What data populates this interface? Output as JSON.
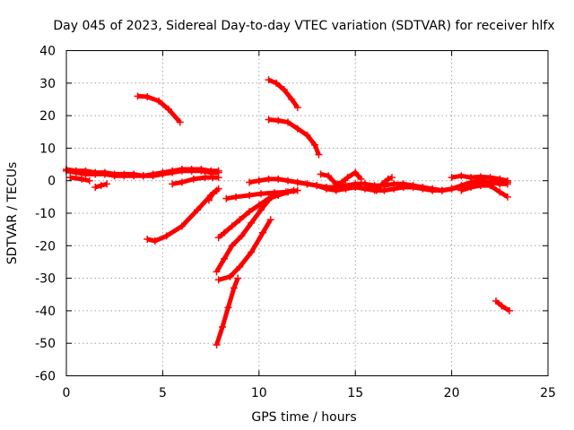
{
  "chart_data": {
    "type": "scatter",
    "title": "Day 045 of 2023, Sidereal Day-to-day VTEC variation (SDTVAR) for receiver hlfx",
    "xlabel": "GPS time / hours",
    "ylabel": "SDTVAR / TECUs",
    "xlim": [
      0,
      25
    ],
    "ylim": [
      -60,
      40
    ],
    "xticks": [
      "0",
      "5",
      "10",
      "15",
      "20",
      "25"
    ],
    "yticks": [
      "-60",
      "-50",
      "-40",
      "-30",
      "-20",
      "-10",
      "0",
      "10",
      "20",
      "30",
      "40"
    ],
    "grid": true,
    "marker": "+",
    "color": "#ff0000",
    "series": [
      {
        "x": [
          0,
          0.5,
          1,
          1.5,
          2,
          2.5,
          3,
          3.5,
          4,
          4.5,
          5,
          5.5,
          6,
          6.5,
          7,
          7.5,
          7.9
        ],
        "y": [
          3,
          2.5,
          2,
          2,
          2,
          1.5,
          1.5,
          1.5,
          1.5,
          1.5,
          2,
          2.5,
          3,
          3,
          3,
          2.5,
          2.5
        ]
      },
      {
        "x": [
          0,
          0.5,
          1,
          1.5,
          2,
          2.5,
          3,
          3.5,
          4,
          4.5,
          5,
          5.5,
          6,
          6.5,
          7,
          7.5,
          7.9
        ],
        "y": [
          3.5,
          3,
          3,
          2.5,
          2.5,
          2,
          2,
          2,
          1.5,
          2,
          2.5,
          3,
          3.5,
          3.5,
          3.5,
          3,
          3
        ]
      },
      {
        "x": [
          0.2,
          0.8,
          1.2
        ],
        "y": [
          1,
          0.5,
          0
        ]
      },
      {
        "x": [
          1.5,
          1.8,
          2.1
        ],
        "y": [
          -2,
          -1.5,
          -1
        ]
      },
      {
        "x": [
          3.7,
          4.2,
          4.8,
          5.3,
          5.9
        ],
        "y": [
          26,
          25.8,
          24.5,
          22,
          18
        ]
      },
      {
        "x": [
          4.2,
          4.6,
          5.2,
          6,
          6.8,
          7.5,
          7.8
        ],
        "y": [
          -18,
          -18.5,
          -17,
          -14,
          -9,
          -4.5,
          -3
        ]
      },
      {
        "x": [
          5.5,
          6,
          6.6,
          7.2,
          7.6,
          7.9
        ],
        "y": [
          -1,
          -0.5,
          0.5,
          1,
          1,
          1
        ]
      },
      {
        "x": [
          7.4,
          7.6,
          7.8,
          7.9
        ],
        "y": [
          -6,
          -4,
          -3,
          -2.5
        ]
      },
      {
        "x": [
          7.9,
          8.2,
          8.6,
          9,
          9.5,
          10,
          10.5,
          11,
          11.5,
          12
        ],
        "y": [
          -17.5,
          -16,
          -14,
          -12,
          -9.5,
          -7.5,
          -5.5,
          -4.5,
          -3.5,
          -3
        ]
      },
      {
        "x": [
          7.8,
          8.2,
          8.6,
          9.1,
          9.6,
          10.1,
          10.5,
          10.8
        ],
        "y": [
          -28,
          -24,
          -20,
          -17,
          -13,
          -9,
          -6,
          -4
        ]
      },
      {
        "x": [
          7.9,
          8.5,
          9,
          9.6,
          10.2,
          10.6
        ],
        "y": [
          -30.5,
          -29.5,
          -26.5,
          -22,
          -16,
          -12
        ]
      },
      {
        "x": [
          7.8,
          8.1,
          8.4,
          8.7,
          8.9
        ],
        "y": [
          -50.5,
          -45,
          -39,
          -33,
          -30
        ]
      },
      {
        "x": [
          8.3,
          8.8,
          9.5,
          10.1,
          10.8,
          11.4,
          11.8
        ],
        "y": [
          -5.5,
          -5,
          -4.5,
          -4,
          -3.7,
          -3.5,
          -3
        ]
      },
      {
        "x": [
          9.5,
          10,
          10.5,
          11,
          11.5,
          12,
          12.5,
          13,
          13.5,
          14,
          14.5,
          15,
          15.5,
          16,
          16.5,
          17,
          17.5,
          18,
          18.5,
          19,
          19.5,
          20,
          20.5,
          21,
          21.5,
          22,
          22.5,
          22.9
        ],
        "y": [
          -0.5,
          0,
          0.5,
          0.5,
          0,
          -0.5,
          -1,
          -1.5,
          -2,
          -2,
          -1.5,
          -1,
          -1,
          -1.5,
          -1.5,
          -1,
          -1,
          -1.5,
          -2,
          -2.5,
          -3,
          -2.5,
          -1.5,
          -0.5,
          0,
          -0.5,
          -1,
          -1
        ]
      },
      {
        "x": [
          12,
          12.5,
          13,
          13.5,
          14,
          14.5,
          15,
          15.5,
          16,
          16.5,
          17,
          17.5,
          18,
          18.5,
          19,
          19.5,
          20,
          20.5,
          21,
          21.5,
          22,
          22.5,
          22.9
        ],
        "y": [
          -0.5,
          -1,
          -1.5,
          -2.5,
          -3,
          -2.5,
          -2,
          -2.5,
          -3,
          -3,
          -2.5,
          -2,
          -2,
          -2.5,
          -3,
          -3,
          -2.5,
          -2,
          -1.5,
          -1,
          -0.5,
          -0.5,
          -0.5
        ]
      },
      {
        "x": [
          13.2,
          13.6,
          14,
          14.3,
          14.6,
          15,
          15.3
        ],
        "y": [
          2,
          1.5,
          -1,
          -0.5,
          1,
          2.5,
          0.5
        ]
      },
      {
        "x": [
          15.5,
          15.8,
          16.1,
          16.4,
          16.7,
          16.9
        ],
        "y": [
          -1,
          -2,
          -3,
          -1,
          0.5,
          1
        ]
      },
      {
        "x": [
          20,
          20.5,
          21,
          21.5,
          22,
          22.5,
          22.9
        ],
        "y": [
          1,
          1.5,
          1,
          1.2,
          1,
          0.5,
          0
        ]
      },
      {
        "x": [
          20.5,
          21,
          21.5,
          22,
          22.5,
          22.9
        ],
        "y": [
          -3,
          -2,
          -1.5,
          -1.5,
          -3.5,
          -5
        ]
      },
      {
        "x": [
          10.5,
          10.9,
          11.3,
          11.7,
          12
        ],
        "y": [
          31,
          30,
          28,
          25,
          22.5
        ]
      },
      {
        "x": [
          10.5,
          11,
          11.5,
          12,
          12.5,
          12.9,
          13.1
        ],
        "y": [
          18.8,
          18.5,
          18,
          16,
          14,
          11,
          8
        ]
      },
      {
        "x": [
          22.3,
          22.6,
          23
        ],
        "y": [
          -37,
          -38.5,
          -40
        ]
      }
    ]
  }
}
